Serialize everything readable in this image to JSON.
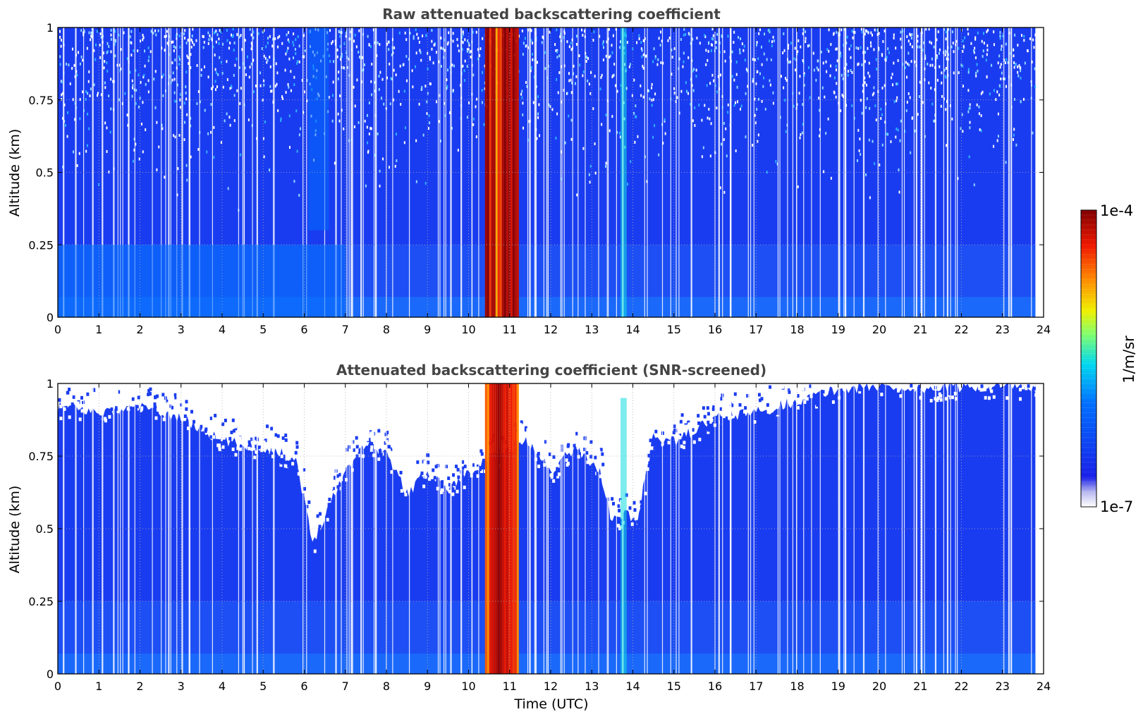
{
  "chart_data": [
    {
      "type": "heatmap",
      "title": "Raw attenuated backscattering coefficient",
      "xlabel": "",
      "ylabel": "Altitude (km)",
      "xlim": [
        0,
        24
      ],
      "ylim": [
        0,
        1
      ],
      "x_ticks": [
        "0",
        "1",
        "2",
        "3",
        "4",
        "5",
        "6",
        "7",
        "8",
        "9",
        "10",
        "11",
        "12",
        "13",
        "14",
        "15",
        "16",
        "17",
        "18",
        "19",
        "20",
        "21",
        "22",
        "23",
        "24"
      ],
      "y_ticks": [
        "0",
        "0.25",
        "0.5",
        "0.75",
        "1"
      ],
      "grid": true,
      "color_scale": "log",
      "value_range": [
        1e-07,
        0.0001
      ],
      "data_time_range_utc": [
        0,
        23.8
      ],
      "features": [
        {
          "label": "strong backscatter column",
          "x_range": [
            10.4,
            11.2
          ],
          "y_range": [
            0,
            1
          ],
          "value": 5e-05
        },
        {
          "label": "enhanced signal column",
          "x_range": [
            13.7,
            13.85
          ],
          "y_range": [
            0,
            1
          ],
          "value": 3e-06
        },
        {
          "label": "enhanced signal column",
          "x_range": [
            6.1,
            6.6
          ],
          "y_range": [
            0.3,
            1
          ],
          "value": 1e-06
        },
        {
          "label": "enhanced near-surface layer",
          "x_range": [
            0,
            7
          ],
          "y_range": [
            0,
            0.25
          ],
          "value": 1e-06
        }
      ]
    },
    {
      "type": "heatmap",
      "title": "Attenuated backscattering coefficient (SNR-screened)",
      "xlabel": "Time (UTC)",
      "ylabel": "Altitude (km)",
      "xlim": [
        0,
        24
      ],
      "ylim": [
        0,
        1
      ],
      "x_ticks": [
        "0",
        "1",
        "2",
        "3",
        "4",
        "5",
        "6",
        "7",
        "8",
        "9",
        "10",
        "11",
        "12",
        "13",
        "14",
        "15",
        "16",
        "17",
        "18",
        "19",
        "20",
        "21",
        "22",
        "23",
        "24"
      ],
      "y_ticks": [
        "0",
        "0.25",
        "0.5",
        "0.75",
        "1"
      ],
      "grid": true,
      "color_scale": "log",
      "value_range": [
        1e-07,
        0.0001
      ],
      "data_time_range_utc": [
        0,
        23.8
      ],
      "screened_top_altitude_km": [
        [
          0,
          0.92
        ],
        [
          1,
          0.9
        ],
        [
          2,
          0.92
        ],
        [
          3,
          0.88
        ],
        [
          4,
          0.8
        ],
        [
          5,
          0.78
        ],
        [
          5.8,
          0.74
        ],
        [
          6.2,
          0.45
        ],
        [
          6.6,
          0.58
        ],
        [
          7,
          0.7
        ],
        [
          7.5,
          0.8
        ],
        [
          8,
          0.76
        ],
        [
          8.5,
          0.62
        ],
        [
          9,
          0.7
        ],
        [
          9.5,
          0.64
        ],
        [
          10.2,
          0.72
        ],
        [
          11.4,
          0.8
        ],
        [
          12,
          0.7
        ],
        [
          12.6,
          0.78
        ],
        [
          13.2,
          0.7
        ],
        [
          13.5,
          0.52
        ],
        [
          13.8,
          0.56
        ],
        [
          14.1,
          0.52
        ],
        [
          14.5,
          0.82
        ],
        [
          15,
          0.8
        ],
        [
          16,
          0.88
        ],
        [
          17,
          0.9
        ],
        [
          18,
          0.94
        ],
        [
          19,
          0.98
        ],
        [
          20,
          0.99
        ],
        [
          21,
          0.98
        ],
        [
          22,
          0.99
        ],
        [
          23,
          0.99
        ],
        [
          23.8,
          0.98
        ]
      ],
      "features": [
        {
          "label": "strong backscatter column",
          "x_range": [
            10.4,
            11.2
          ],
          "y_range": [
            0,
            1
          ],
          "value": 5e-05
        },
        {
          "label": "enhanced signal column",
          "x_range": [
            13.7,
            13.85
          ],
          "y_range": [
            0,
            0.95
          ],
          "value": 3e-06
        }
      ]
    }
  ],
  "colorbar": {
    "max_label": "1e-4",
    "min_label": "1e-7",
    "unit_label": "1/m/sr"
  },
  "colors": {
    "background_blue": "#1040ee",
    "strong_red": "#e02000",
    "mid_yellow": "#f0e000",
    "mid_cyan": "#00c0f0"
  }
}
